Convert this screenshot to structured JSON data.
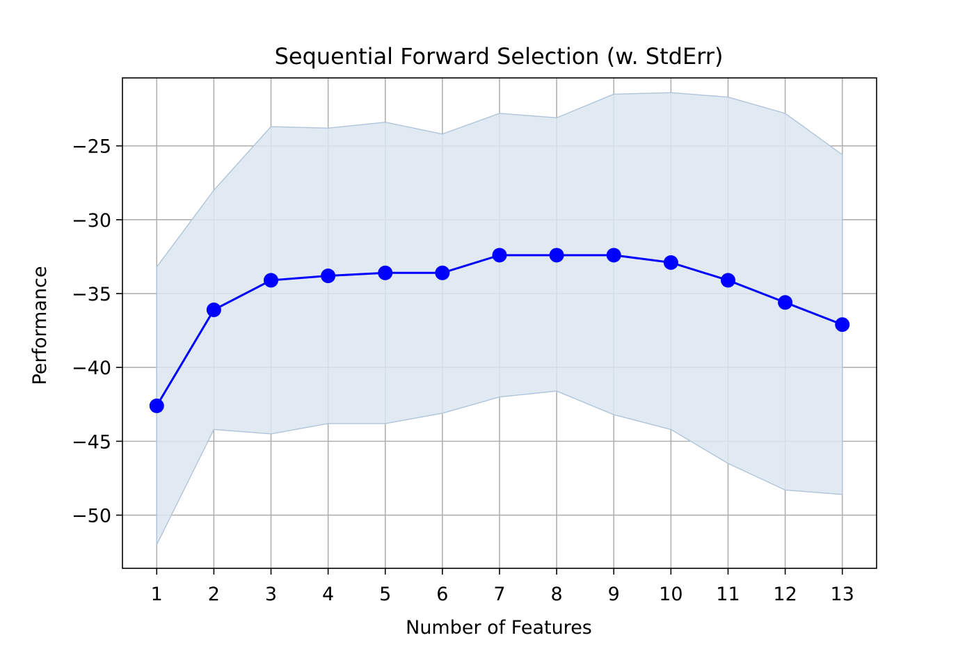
{
  "chart_data": {
    "type": "line",
    "title": "Sequential Forward Selection (w. StdErr)",
    "xlabel": "Number of Features",
    "ylabel": "Performance",
    "x": [
      1,
      2,
      3,
      4,
      5,
      6,
      7,
      8,
      9,
      10,
      11,
      12,
      13
    ],
    "x_tick_labels": [
      "1",
      "2",
      "3",
      "4",
      "5",
      "6",
      "7",
      "8",
      "9",
      "10",
      "11",
      "12",
      "13"
    ],
    "y_ticks": [
      -25,
      -30,
      -35,
      -40,
      -45,
      -50
    ],
    "y_tick_labels": [
      "−25",
      "−30",
      "−35",
      "−40",
      "−45",
      "−50"
    ],
    "xlim": [
      0.4,
      13.6
    ],
    "ylim": [
      -53.6,
      -20.4
    ],
    "grid": true,
    "series": [
      {
        "values": [
          -42.6,
          -36.1,
          -34.1,
          -33.8,
          -33.6,
          -33.6,
          -32.4,
          -32.4,
          -32.4,
          -32.9,
          -34.1,
          -35.6,
          -37.1
        ],
        "upper": [
          -33.2,
          -28.0,
          -23.7,
          -23.8,
          -23.4,
          -24.2,
          -22.8,
          -23.1,
          -21.5,
          -21.4,
          -21.7,
          -22.8,
          -25.6
        ],
        "lower": [
          -52.0,
          -44.2,
          -44.5,
          -43.8,
          -43.8,
          -43.1,
          -42.0,
          -41.6,
          -43.2,
          -44.2,
          -46.5,
          -48.3,
          -48.6
        ]
      }
    ],
    "colors": {
      "line": "#0000ff",
      "band_fill": "#dce6f0",
      "band_edge": "#b0c4d9",
      "grid": "#b0b0b0"
    }
  }
}
